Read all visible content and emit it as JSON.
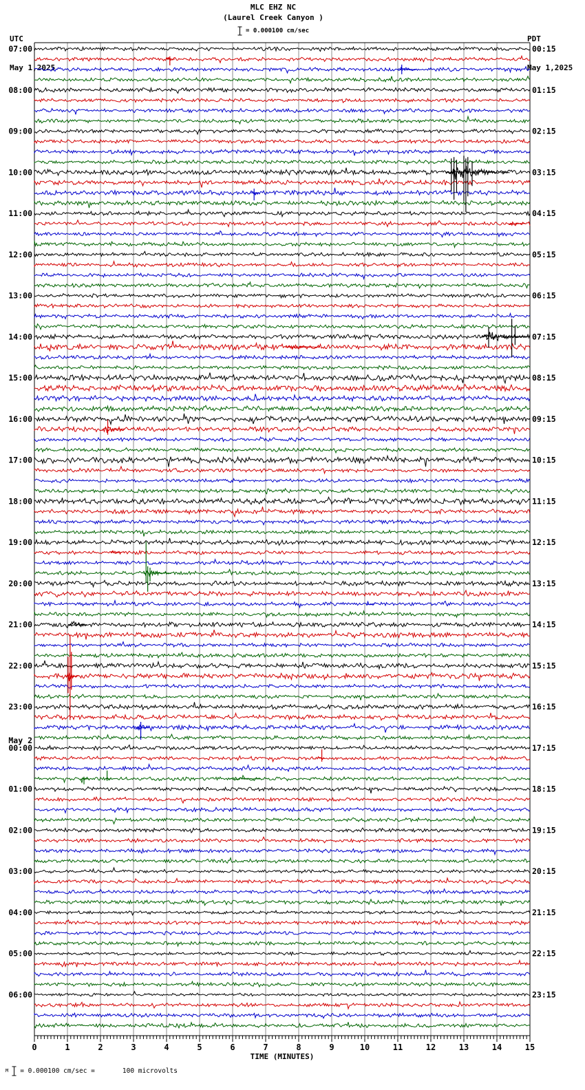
{
  "header": {
    "title": "MLC EHZ NC",
    "subtitle": "(Laurel Creek Canyon )",
    "scale_label": "= 0.000100 cm/sec",
    "left_timezone": "UTC",
    "left_date": "May 1,2025",
    "right_timezone": "PDT",
    "right_date": "May 1,2025"
  },
  "footer": {
    "prefix": "M",
    "scale_text": "= 0.000100 cm/sec =",
    "scale_value": "100 microvolts"
  },
  "chart_data": {
    "type": "seismogram-helicorder",
    "station": "MLC EHZ NC",
    "location": "Laurel Creek Canyon",
    "rows_per_hour": 4,
    "minutes_per_row": 15,
    "utc_hour_labels": [
      "07:00",
      "08:00",
      "09:00",
      "10:00",
      "11:00",
      "12:00",
      "13:00",
      "14:00",
      "15:00",
      "16:00",
      "17:00",
      "18:00",
      "19:00",
      "20:00",
      "21:00",
      "22:00",
      "23:00",
      "00:00",
      "01:00",
      "02:00",
      "03:00",
      "04:00",
      "05:00",
      "06:00"
    ],
    "pdt_hour_labels": [
      "00:15",
      "01:15",
      "02:15",
      "03:15",
      "04:15",
      "05:15",
      "06:15",
      "07:15",
      "08:15",
      "09:15",
      "10:15",
      "11:15",
      "12:15",
      "13:15",
      "14:15",
      "15:15",
      "16:15",
      "17:15",
      "18:15",
      "19:15",
      "20:15",
      "21:15",
      "22:15",
      "23:15"
    ],
    "day_break": {
      "label": "May 2",
      "before_utc_label": "00:00",
      "hour_index": 17
    },
    "x_axis": {
      "label": "TIME (MINUTES)",
      "min": 0,
      "max": 15,
      "major_tick": 1,
      "minor_tick": 0.1,
      "tick_labels": [
        "0",
        "1",
        "2",
        "3",
        "4",
        "5",
        "6",
        "7",
        "8",
        "9",
        "10",
        "11",
        "12",
        "13",
        "14",
        "15"
      ]
    },
    "colors": {
      "trace_cycle": [
        "#000000",
        "#d40000",
        "#0000cc",
        "#006400"
      ],
      "grid": "#8c8c8c",
      "border": "#000000"
    },
    "noise_base_amp": 1.5,
    "noise_overrides": {
      "4": 1.8,
      "12": 2.1,
      "13": 1.9,
      "14": 1.9,
      "15": 1.9,
      "28": 1.9,
      "29": 2.4,
      "32": 2.3,
      "33": 2.5,
      "34": 2.1,
      "35": 2.1,
      "36": 2.2,
      "37": 1.9,
      "40": 2.5,
      "44": 2.5,
      "45": 1.8,
      "48": 1.9,
      "52": 1.9,
      "53": 1.9,
      "56": 1.9,
      "57": 2.0,
      "60": 1.9,
      "61": 2.1,
      "64": 1.9,
      "65": 1.9,
      "66": 1.8,
      "80": 1.3,
      "84": 1.3,
      "88": 1.2,
      "92": 1.2
    },
    "events": [
      {
        "row": 1,
        "t0": 4.0,
        "t1": 4.25,
        "amp": 6,
        "spikes": [
          {
            "t": 4.1,
            "up": 4,
            "down": 9
          }
        ]
      },
      {
        "row": 2,
        "t0": 11.0,
        "t1": 11.55,
        "amp": 5,
        "spikes": [
          {
            "t": 11.12,
            "up": 7,
            "down": 7
          }
        ]
      },
      {
        "row": 9,
        "t0": 11.0,
        "t1": 11.15,
        "amp": 3,
        "spikes": []
      },
      {
        "row": 12,
        "t0": 12.45,
        "t1": 14.4,
        "amp": 18,
        "spikes": [
          {
            "t": 12.62,
            "up": 20,
            "down": 28
          },
          {
            "t": 12.7,
            "up": 22,
            "down": 40
          },
          {
            "t": 12.78,
            "up": 18,
            "down": 30
          },
          {
            "t": 13.0,
            "up": 24,
            "down": 42
          },
          {
            "t": 13.06,
            "up": 20,
            "down": 58
          },
          {
            "t": 13.12,
            "up": 22,
            "down": 35
          },
          {
            "t": 13.25,
            "up": 15,
            "down": 20
          }
        ]
      },
      {
        "row": 14,
        "t0": 6.55,
        "t1": 6.8,
        "amp": 5,
        "spikes": [
          {
            "t": 6.65,
            "up": 6,
            "down": 11
          }
        ]
      },
      {
        "row": 17,
        "t0": 14.35,
        "t1": 14.85,
        "amp": 4,
        "spikes": []
      },
      {
        "row": 28,
        "t0": 13.55,
        "t1": 14.95,
        "amp": 10,
        "spikes": [
          {
            "t": 13.75,
            "up": 14,
            "down": 16
          },
          {
            "t": 14.45,
            "up": 26,
            "down": 30
          },
          {
            "t": 14.55,
            "up": 16,
            "down": 12
          }
        ]
      },
      {
        "row": 29,
        "t0": 7.6,
        "t1": 8.65,
        "amp": 4,
        "spikes": []
      },
      {
        "row": 37,
        "t0": 2.05,
        "t1": 2.75,
        "amp": 8,
        "spikes": [
          {
            "t": 2.22,
            "up": 14,
            "down": 8
          }
        ]
      },
      {
        "row": 49,
        "t0": 2.3,
        "t1": 2.65,
        "amp": 4,
        "spikes": []
      },
      {
        "row": 51,
        "t0": 3.3,
        "t1": 4.15,
        "amp": 7,
        "spikes": [
          {
            "t": 3.38,
            "up": 46,
            "down": 14
          },
          {
            "t": 3.43,
            "up": 10,
            "down": 27
          },
          {
            "t": 3.5,
            "up": 8,
            "down": 12
          }
        ]
      },
      {
        "row": 54,
        "t0": 10.05,
        "t1": 10.3,
        "amp": 3,
        "spikes": []
      },
      {
        "row": 56,
        "t0": 1.05,
        "t1": 1.6,
        "amp": 8,
        "spikes": []
      },
      {
        "row": 61,
        "t0": 0.95,
        "t1": 1.35,
        "amp": 12,
        "spikes": [
          {
            "t": 1.02,
            "up": 28,
            "down": 25
          },
          {
            "t": 1.08,
            "up": 60,
            "down": 64
          },
          {
            "t": 1.12,
            "up": 35,
            "down": 20
          }
        ]
      },
      {
        "row": 66,
        "t0": 3.0,
        "t1": 3.5,
        "amp": 8,
        "spikes": [
          {
            "t": 3.22,
            "up": 8,
            "down": 18
          }
        ]
      },
      {
        "row": 69,
        "t0": 8.6,
        "t1": 8.8,
        "amp": 4,
        "spikes": [
          {
            "t": 8.7,
            "up": 13,
            "down": 5
          }
        ]
      },
      {
        "row": 71,
        "t0": 1.4,
        "t1": 1.65,
        "amp": 5,
        "spikes": [
          {
            "t": 1.5,
            "up": 3,
            "down": 8
          }
        ]
      },
      {
        "row": 71,
        "t0": 2.15,
        "t1": 2.3,
        "amp": 4,
        "spikes": [
          {
            "t": 2.2,
            "up": 12,
            "down": 3
          }
        ]
      },
      {
        "row": 71,
        "t0": 5.9,
        "t1": 6.85,
        "amp": 4,
        "spikes": []
      }
    ]
  }
}
